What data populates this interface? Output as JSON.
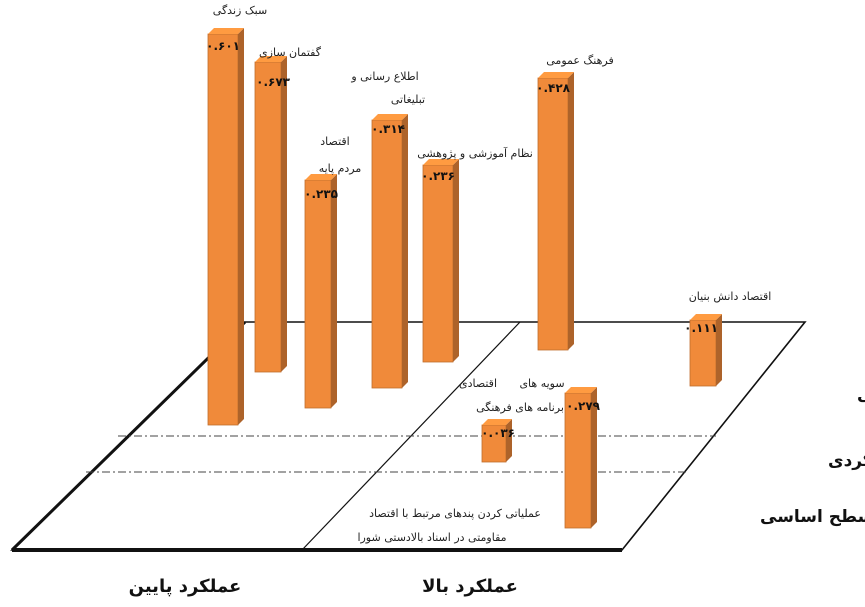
{
  "chart_data": {
    "type": "bar",
    "variant": "3d-matrix",
    "title": "",
    "bar_color": "#F08A3A",
    "x_categories": [
      "عملکرد پایین",
      "عملکرد بالا"
    ],
    "y_levels": [
      "سطح انگیزشی",
      "سطح عملکردی",
      "سطح اساسی"
    ],
    "bars": [
      {
        "label": "سبک زندگی",
        "value_text": "۰.۶۰۱",
        "value": 0.601,
        "x_category": "عملکرد پایین",
        "level": "سطح انگیزشی"
      },
      {
        "label": "گفتمان سازی",
        "value_text": "۰.۶۷۳",
        "value": 0.673,
        "x_category": "عملکرد پایین",
        "level": "سطح انگیزشی"
      },
      {
        "label_lines": [
          "اقتصاد",
          "مردم پایه"
        ],
        "value_text": "۰.۲۳۵",
        "value": 0.235,
        "x_category": "عملکرد پایین",
        "level": "سطح انگیزشی"
      },
      {
        "label_lines": [
          "اطلاع رسانی و",
          "تبلیغاتی"
        ],
        "value_text": "۰.۳۱۴",
        "value": 0.314,
        "x_category": "عملکرد پایین",
        "level": "سطح انگیزشی"
      },
      {
        "label": "نظام آموزشی و پژوهشی",
        "value_text": "۰.۲۳۶",
        "value": 0.236,
        "x_category": "عملکرد پایین",
        "level": "سطح انگیزشی"
      },
      {
        "label": "فرهنگ عمومی",
        "value_text": "۰.۴۲۸",
        "value": 0.428,
        "x_category": "عملکرد بالا",
        "level": "سطح انگیزشی"
      },
      {
        "label": "اقتصاد دانش بنیان",
        "value_text": "۰.۱۱۱",
        "value": 0.111,
        "x_category": "عملکرد بالا",
        "level": "سطح انگیزشی"
      },
      {
        "label_lines": [
          "سویه های",
          "اقتصادی",
          "برنامه های فرهنگی"
        ],
        "value_text": "۰.۰۳۶",
        "value": 0.036,
        "x_category": "عملکرد بالا",
        "level": "سطح عملکردی"
      },
      {
        "label_lines": [
          "عملیاتی کردن پندهای مرتبط با اقتصاد",
          "مقاومتی در اسناد بالادستی شورا"
        ],
        "value_text": "۰.۲۷۹",
        "value": 0.279,
        "x_category": "عملکرد بالا",
        "level": "سطح اساسی"
      }
    ]
  }
}
